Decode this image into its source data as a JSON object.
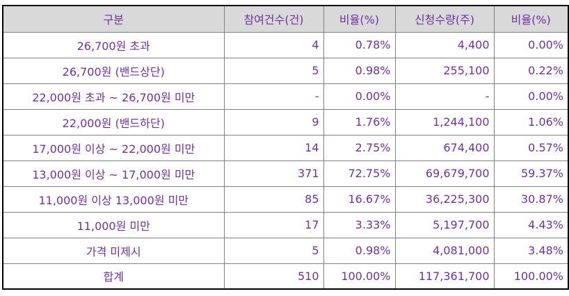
{
  "colors": {
    "text": "#7030a0",
    "header_bg": "#d9d9d9",
    "grid": "#808080",
    "outer_border": "#000000"
  },
  "table": {
    "headers": [
      "구분",
      "참여건수(건)",
      "비율(%)",
      "신청수량(주)",
      "비율(%)"
    ],
    "rows": [
      {
        "category": "26,700원 초과",
        "count": "4",
        "count_ratio": "0.78%",
        "quantity": "4,400",
        "quantity_ratio": "0.00%"
      },
      {
        "category": "26,700원 (밴드상단)",
        "count": "5",
        "count_ratio": "0.98%",
        "quantity": "255,100",
        "quantity_ratio": "0.22%"
      },
      {
        "category": "22,000원 초과 ~ 26,700원 미만",
        "count": "-",
        "count_ratio": "0.00%",
        "quantity": "-",
        "quantity_ratio": "0.00%"
      },
      {
        "category": "22,000원 (밴드하단)",
        "count": "9",
        "count_ratio": "1.76%",
        "quantity": "1,244,100",
        "quantity_ratio": "1.06%"
      },
      {
        "category": "17,000원 이상 ~ 22,000원 미만",
        "count": "14",
        "count_ratio": "2.75%",
        "quantity": "674,400",
        "quantity_ratio": "0.57%"
      },
      {
        "category": "13,000원 이상 ~ 17,000원 미만",
        "count": "371",
        "count_ratio": "72.75%",
        "quantity": "69,679,700",
        "quantity_ratio": "59.37%"
      },
      {
        "category": "11,000원 이상 13,000원 미만",
        "count": "85",
        "count_ratio": "16.67%",
        "quantity": "36,225,300",
        "quantity_ratio": "30.87%"
      },
      {
        "category": "11,000원 미만",
        "count": "17",
        "count_ratio": "3.33%",
        "quantity": "5,197,700",
        "quantity_ratio": "4.43%"
      },
      {
        "category": "가격 미제시",
        "count": "5",
        "count_ratio": "0.98%",
        "quantity": "4,081,000",
        "quantity_ratio": "3.48%"
      },
      {
        "category": "합계",
        "count": "510",
        "count_ratio": "100.00%",
        "quantity": "117,361,700",
        "quantity_ratio": "100.00%"
      }
    ]
  }
}
